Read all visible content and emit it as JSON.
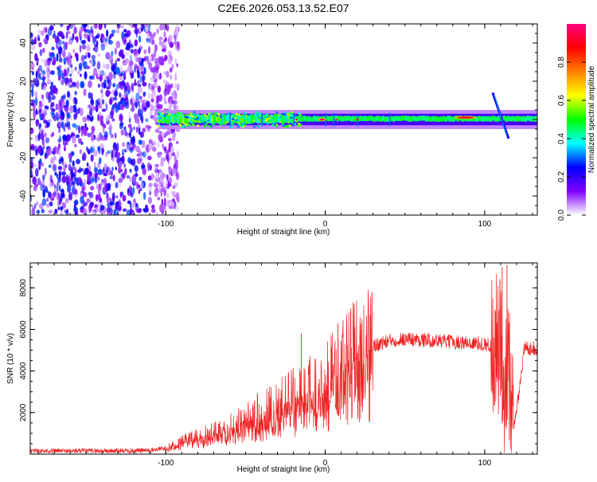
{
  "figure_title": "C2E6.2026.053.13.52.E07",
  "chart_data": [
    {
      "type": "heatmap",
      "title": "C2E6.2026.053.13.52.E07",
      "xlabel": "Height of straight line (km)",
      "ylabel": "Frequency (Hz)",
      "xlim": [
        -185,
        133
      ],
      "ylim": [
        -50,
        50
      ],
      "xticks": [
        -100,
        0,
        100
      ],
      "yticks": [
        -40,
        -20,
        0,
        20,
        40
      ],
      "colorbar": {
        "label": "Normalized spectral amplitude",
        "range": [
          0,
          1
        ],
        "ticks": [
          "0.0",
          "0.2",
          "0.4",
          "0.6",
          "0.8"
        ],
        "colors": [
          "#ffffff",
          "#8000ff",
          "#0000ff",
          "#00ffff",
          "#00ff00",
          "#ffff00",
          "#ff8000",
          "#ff0000",
          "#ff0080"
        ]
      },
      "regions": [
        {
          "name": "broadband noise",
          "x_range": [
            -185,
            -100
          ],
          "freq_range": [
            -50,
            50
          ],
          "amplitude": 0.2
        },
        {
          "name": "central band",
          "x_range": [
            -105,
            133
          ],
          "freq_range": [
            -3,
            3
          ],
          "amplitude": 0.45
        },
        {
          "name": "hot spot",
          "x": -2,
          "freq": 0,
          "amplitude": 0.95
        },
        {
          "name": "hot spot",
          "x": 88,
          "freq": 1,
          "amplitude": 0.9
        },
        {
          "name": "sweep",
          "x_range": [
            105,
            115
          ],
          "freq_range": [
            -10,
            14
          ],
          "amplitude": 0.3
        }
      ]
    },
    {
      "type": "line",
      "xlabel": "Height of straight line (km)",
      "ylabel": "SNR (10 * v/v)",
      "xlim": [
        -185,
        133
      ],
      "ylim": [
        0,
        9200
      ],
      "xticks": [
        -100,
        0,
        100
      ],
      "yticks": [
        2000,
        4000,
        6000,
        8000
      ],
      "series": [
        {
          "name": "SNR",
          "color": "#ee2222",
          "x": [
            -185,
            -160,
            -135,
            -110,
            -100,
            -90,
            -80,
            -70,
            -60,
            -50,
            -40,
            -30,
            -20,
            -10,
            0,
            10,
            20,
            30,
            40,
            50,
            60,
            70,
            80,
            90,
            100,
            105,
            110,
            112,
            115,
            118,
            125,
            133
          ],
          "y": [
            150,
            150,
            150,
            180,
            280,
            600,
            800,
            1000,
            1250,
            1600,
            2000,
            2300,
            2700,
            3100,
            3500,
            4200,
            4900,
            5200,
            5450,
            5550,
            5500,
            5450,
            5400,
            5350,
            5300,
            5200,
            5000,
            900,
            5000,
            1000,
            5100,
            5100
          ]
        }
      ],
      "spikes": [
        {
          "x": -15,
          "y": 5800
        },
        {
          "x": 8,
          "y": 6300
        },
        {
          "x": 111,
          "y": 9000
        },
        {
          "x": 114,
          "y": 9100
        }
      ]
    }
  ]
}
